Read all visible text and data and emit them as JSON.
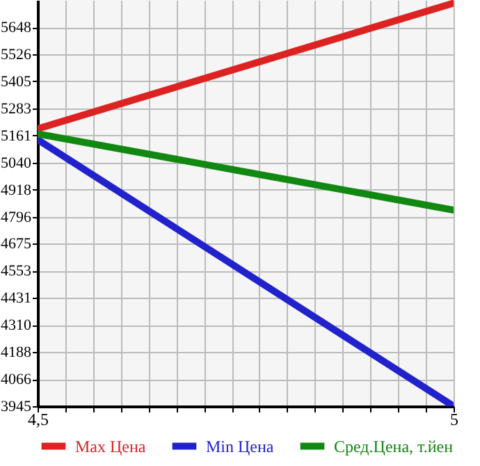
{
  "chart_data": {
    "type": "line",
    "x": [
      4.5,
      5
    ],
    "series": [
      {
        "name": "Max Цена",
        "color": "#dd2222",
        "values": [
          5191,
          5756
        ]
      },
      {
        "name": "Min Цена",
        "color": "#2222cc",
        "values": [
          5143,
          3945
        ]
      },
      {
        "name": "Сред.Цена, т.йен",
        "color": "#118811",
        "values": [
          5169,
          4826
        ]
      }
    ],
    "xlim": [
      4.5,
      5
    ],
    "xticks": [
      {
        "value": 4.5,
        "label": "4,5"
      },
      {
        "value": 4.5333,
        "label": null
      },
      {
        "value": 4.5667,
        "label": null
      },
      {
        "value": 4.6,
        "label": null
      },
      {
        "value": 4.6333,
        "label": null
      },
      {
        "value": 4.6667,
        "label": null
      },
      {
        "value": 4.7,
        "label": null
      },
      {
        "value": 4.7333,
        "label": null
      },
      {
        "value": 4.7667,
        "label": null
      },
      {
        "value": 4.8,
        "label": null
      },
      {
        "value": 4.8333,
        "label": null
      },
      {
        "value": 4.8667,
        "label": null
      },
      {
        "value": 4.9,
        "label": null
      },
      {
        "value": 4.9333,
        "label": null
      },
      {
        "value": 4.9667,
        "label": null
      },
      5
    ],
    "ylim": [
      3945,
      5770
    ],
    "yticks": [
      3945,
      4066,
      4188,
      4310,
      4431,
      4553,
      4675,
      4796,
      4918,
      5040,
      5161,
      5283,
      5405,
      5526,
      5648
    ],
    "grid": true,
    "legend": "bottom",
    "marker": "none",
    "line_style": "solid"
  }
}
